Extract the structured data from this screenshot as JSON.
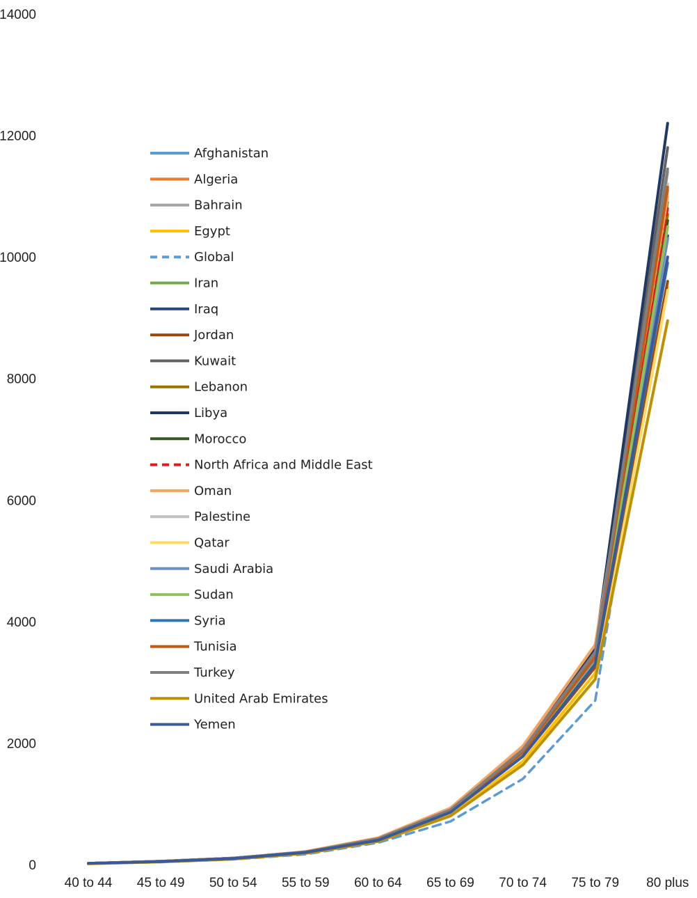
{
  "chart_data": {
    "type": "line",
    "title": "",
    "xlabel": "",
    "ylabel": "",
    "categories": [
      "40 to 44",
      "45 to 49",
      "50 to 54",
      "55 to 59",
      "60 to 64",
      "65 to 69",
      "70 to 74",
      "75 to 79",
      "80 plus"
    ],
    "ylim": [
      0,
      14000
    ],
    "yticks": [
      "0",
      "2000",
      "4000",
      "6000",
      "8000",
      "10000",
      "12000",
      "14000"
    ],
    "grid": false,
    "legend_position": "upper-left inside plot",
    "series": [
      {
        "name": "Afghanistan",
        "color": "#5B9BD5",
        "dashed": false,
        "values": [
          20,
          50,
          100,
          200,
          410,
          870,
          1820,
          3350,
          10300
        ]
      },
      {
        "name": "Algeria",
        "color": "#ED7D31",
        "dashed": false,
        "values": [
          20,
          55,
          105,
          210,
          420,
          900,
          1880,
          3500,
          11100
        ]
      },
      {
        "name": "Bahrain",
        "color": "#A5A5A5",
        "dashed": false,
        "values": [
          20,
          55,
          105,
          205,
          420,
          890,
          1870,
          3450,
          11400
        ]
      },
      {
        "name": "Egypt",
        "color": "#FFC000",
        "dashed": false,
        "values": [
          15,
          45,
          90,
          185,
          380,
          820,
          1700,
          3150,
          9500
        ]
      },
      {
        "name": "Global",
        "color": "#5B9BD5",
        "dashed": true,
        "values": [
          15,
          40,
          85,
          170,
          360,
          710,
          1410,
          2700,
          10000
        ]
      },
      {
        "name": "Iran",
        "color": "#70AD47",
        "dashed": false,
        "values": [
          20,
          50,
          100,
          200,
          410,
          870,
          1820,
          3350,
          10900
        ]
      },
      {
        "name": "Iraq",
        "color": "#264478",
        "dashed": false,
        "values": [
          20,
          50,
          100,
          200,
          410,
          870,
          1800,
          3300,
          10350
        ]
      },
      {
        "name": "Jordan",
        "color": "#9E480E",
        "dashed": false,
        "values": [
          20,
          50,
          100,
          200,
          400,
          860,
          1780,
          3250,
          9600
        ]
      },
      {
        "name": "Kuwait",
        "color": "#636363",
        "dashed": false,
        "values": [
          20,
          55,
          105,
          210,
          430,
          910,
          1900,
          3550,
          11800
        ]
      },
      {
        "name": "Lebanon",
        "color": "#997300",
        "dashed": false,
        "values": [
          20,
          50,
          100,
          200,
          410,
          870,
          1810,
          3350,
          10700
        ]
      },
      {
        "name": "Libya",
        "color": "#203864",
        "dashed": false,
        "values": [
          20,
          55,
          105,
          210,
          430,
          910,
          1900,
          3550,
          12200
        ]
      },
      {
        "name": "Morocco",
        "color": "#375623",
        "dashed": false,
        "values": [
          20,
          50,
          100,
          200,
          410,
          870,
          1810,
          3350,
          10600
        ]
      },
      {
        "name": "North Africa and Middle East",
        "color": "#E41A1C",
        "dashed": true,
        "values": [
          20,
          50,
          100,
          200,
          410,
          870,
          1820,
          3400,
          10800
        ]
      },
      {
        "name": "Oman",
        "color": "#F4A460",
        "dashed": false,
        "values": [
          20,
          55,
          105,
          215,
          440,
          930,
          1950,
          3620,
          11000
        ]
      },
      {
        "name": "Palestine",
        "color": "#BFBFBF",
        "dashed": false,
        "values": [
          20,
          50,
          100,
          205,
          420,
          890,
          1860,
          3450,
          11200
        ]
      },
      {
        "name": "Qatar",
        "color": "#FFD966",
        "dashed": false,
        "values": [
          15,
          45,
          90,
          185,
          380,
          800,
          1650,
          3050,
          9450
        ]
      },
      {
        "name": "Saudi Arabia",
        "color": "#6A8FCB",
        "dashed": false,
        "values": [
          20,
          50,
          100,
          200,
          410,
          870,
          1820,
          3380,
          10300
        ]
      },
      {
        "name": "Sudan",
        "color": "#8FC15A",
        "dashed": false,
        "values": [
          20,
          50,
          100,
          200,
          410,
          860,
          1800,
          3320,
          10500
        ]
      },
      {
        "name": "Syria",
        "color": "#2E75B6",
        "dashed": false,
        "values": [
          20,
          50,
          100,
          200,
          400,
          860,
          1780,
          3300,
          9900
        ]
      },
      {
        "name": "Tunisia",
        "color": "#C55A11",
        "dashed": false,
        "values": [
          20,
          50,
          100,
          205,
          420,
          880,
          1850,
          3420,
          11150
        ]
      },
      {
        "name": "Turkey",
        "color": "#7F7F7F",
        "dashed": false,
        "values": [
          20,
          55,
          105,
          210,
          425,
          900,
          1890,
          3500,
          11450
        ]
      },
      {
        "name": "United Arab Emirates",
        "color": "#BF9000",
        "dashed": false,
        "values": [
          15,
          45,
          90,
          185,
          380,
          800,
          1640,
          3050,
          8950
        ]
      },
      {
        "name": "Yemen",
        "color": "#3B5998",
        "dashed": false,
        "values": [
          20,
          50,
          100,
          200,
          400,
          860,
          1780,
          3300,
          10000
        ]
      }
    ]
  }
}
